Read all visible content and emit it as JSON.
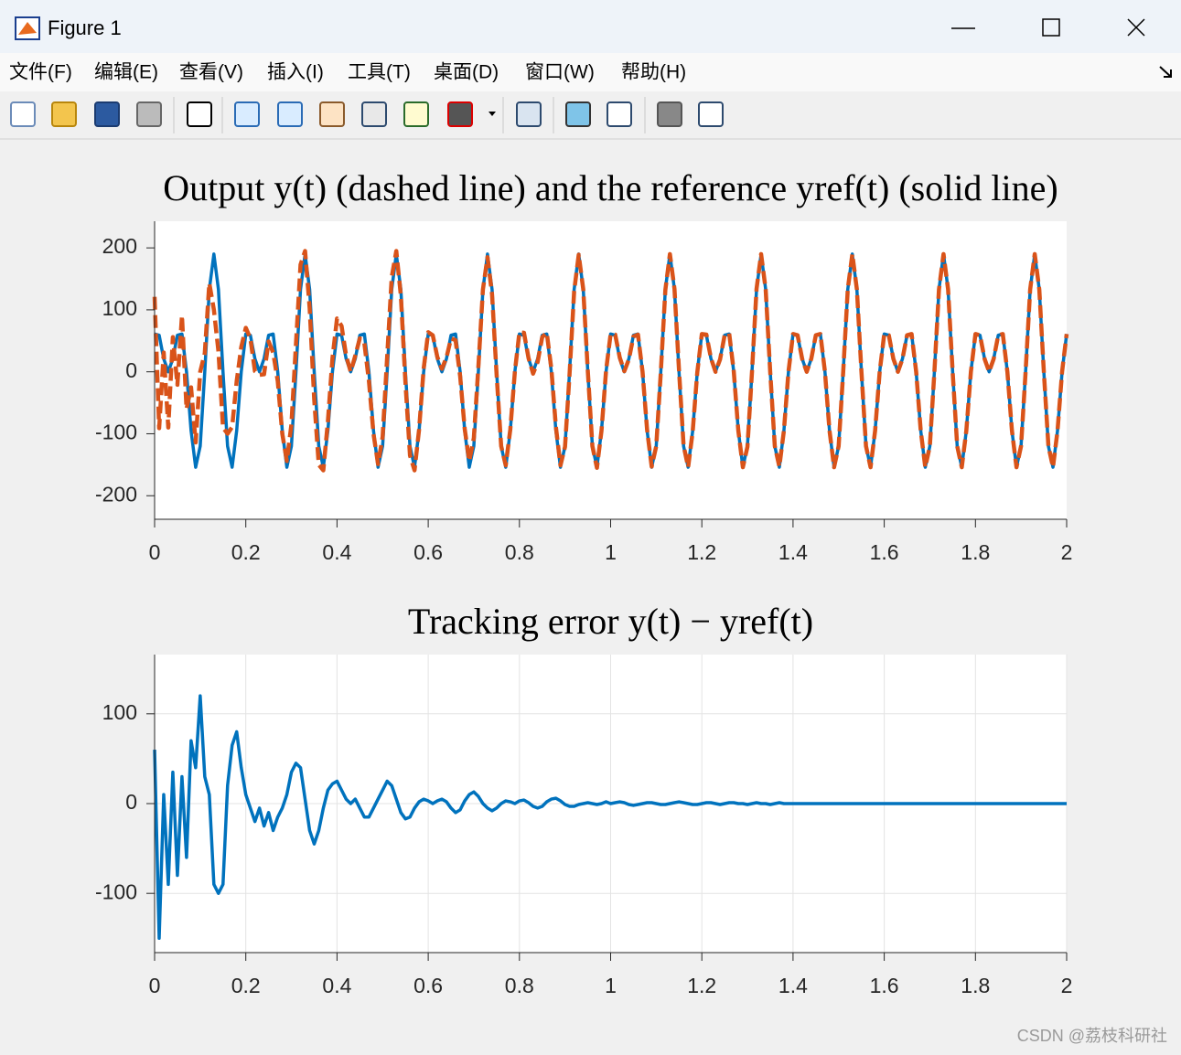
{
  "window": {
    "title": "Figure 1"
  },
  "menu": [
    "文件(F)",
    "编辑(E)",
    "查看(V)",
    "插入(I)",
    "工具(T)",
    "桌面(D)",
    "窗口(W)",
    "帮助(H)"
  ],
  "watermark": "CSDN @荔枝科研社",
  "chart_data": [
    {
      "type": "line",
      "title": "Output y(t) (dashed line) and the reference yref(t) (solid line)",
      "x": [
        0,
        0.01,
        0.02,
        0.03,
        0.04,
        0.05,
        0.06,
        0.07,
        0.08,
        0.09,
        0.1,
        0.11,
        0.12,
        0.13,
        0.14,
        0.15,
        0.16,
        0.17,
        0.18,
        0.19,
        0.2,
        0.21,
        0.22,
        0.23,
        0.24,
        0.25,
        0.26,
        0.27,
        0.28,
        0.29,
        0.3,
        0.31,
        0.32,
        0.33,
        0.34,
        0.35,
        0.36,
        0.37,
        0.38,
        0.39,
        0.4,
        0.41,
        0.42,
        0.43,
        0.44,
        0.45,
        0.46,
        0.47,
        0.48,
        0.49,
        0.5,
        0.51,
        0.52,
        0.53,
        0.54,
        0.55,
        0.56,
        0.57,
        0.58,
        0.59,
        0.6,
        0.61,
        0.62,
        0.63,
        0.64,
        0.65,
        0.66,
        0.67,
        0.68,
        0.69,
        0.7,
        0.71,
        0.72,
        0.73,
        0.74,
        0.75,
        0.76,
        0.77,
        0.78,
        0.79,
        0.8,
        0.81,
        0.82,
        0.83,
        0.84,
        0.85,
        0.86,
        0.87,
        0.88,
        0.89,
        0.9,
        0.91,
        0.92,
        0.93,
        0.94,
        0.95,
        0.96,
        0.97,
        0.98,
        0.99,
        1,
        1.01,
        1.02,
        1.03,
        1.04,
        1.05,
        1.06,
        1.07,
        1.08,
        1.09,
        1.1,
        1.11,
        1.12,
        1.13,
        1.14,
        1.15,
        1.16,
        1.17,
        1.18,
        1.19,
        1.2,
        1.21,
        1.22,
        1.23,
        1.24,
        1.25,
        1.26,
        1.27,
        1.28,
        1.29,
        1.3,
        1.31,
        1.32,
        1.33,
        1.34,
        1.35,
        1.36,
        1.37,
        1.38,
        1.39,
        1.4,
        1.41,
        1.42,
        1.43,
        1.44,
        1.45,
        1.46,
        1.47,
        1.48,
        1.49,
        1.5,
        1.51,
        1.52,
        1.53,
        1.54,
        1.55,
        1.56,
        1.57,
        1.58,
        1.59,
        1.6,
        1.61,
        1.62,
        1.63,
        1.64,
        1.65,
        1.66,
        1.67,
        1.68,
        1.69,
        1.7,
        1.71,
        1.72,
        1.73,
        1.74,
        1.75,
        1.76,
        1.77,
        1.78,
        1.79,
        1.8,
        1.81,
        1.82,
        1.83,
        1.84,
        1.85,
        1.86,
        1.87,
        1.88,
        1.89,
        1.9,
        1.91,
        1.92,
        1.93,
        1.94,
        1.95,
        1.96,
        1.97,
        1.98,
        1.99,
        2
      ],
      "series": [
        {
          "color": "#0072bd",
          "dashed": false,
          "values": [
            61,
            59,
            21,
            0,
            21,
            59,
            61,
            0,
            -95,
            -154,
            -120,
            0,
            133,
            190,
            133,
            0,
            -120,
            -154,
            -95,
            0,
            61,
            59,
            21,
            0,
            21,
            59,
            61,
            0,
            -95,
            -154,
            -120,
            0,
            133,
            190,
            133,
            0,
            -120,
            -154,
            -95,
            0,
            61,
            59,
            21,
            0,
            21,
            59,
            61,
            0,
            -95,
            -154,
            -120,
            0,
            133,
            190,
            133,
            0,
            -120,
            -154,
            -95,
            0,
            61,
            59,
            21,
            0,
            21,
            59,
            61,
            0,
            -95,
            -154,
            -120,
            0,
            133,
            190,
            133,
            0,
            -120,
            -154,
            -95,
            0,
            61,
            59,
            21,
            0,
            21,
            59,
            61,
            0,
            -95,
            -154,
            -120,
            0,
            133,
            190,
            133,
            0,
            -120,
            -154,
            -95,
            0,
            61,
            59,
            21,
            0,
            21,
            59,
            61,
            0,
            -95,
            -154,
            -120,
            0,
            133,
            190,
            133,
            0,
            -120,
            -154,
            -95,
            0,
            61,
            59,
            21,
            0,
            21,
            59,
            61,
            0,
            -95,
            -154,
            -120,
            0,
            133,
            190,
            133,
            0,
            -120,
            -154,
            -95,
            0,
            61,
            59,
            21,
            0,
            21,
            59,
            61,
            0,
            -95,
            -154,
            -120,
            0,
            133,
            190,
            133,
            0,
            -120,
            -154,
            -95,
            0,
            61,
            59,
            21,
            0,
            21,
            59,
            61,
            0,
            -95,
            -154,
            -120,
            0,
            133,
            190,
            133,
            0,
            -120,
            -154,
            -95,
            0,
            61,
            59,
            21,
            0,
            21,
            59,
            61,
            0,
            -95,
            -154,
            -120,
            0,
            133,
            190,
            133,
            0,
            -120,
            -154,
            -95,
            0,
            61
          ]
        },
        {
          "color": "#d95319",
          "dashed": true,
          "values": [
            121,
            -91,
            31,
            -90,
            56,
            -21,
            91,
            -60,
            -25,
            -114,
            0,
            30,
            143,
            100,
            33,
            -90,
            -100,
            -89,
            -15,
            40,
            71,
            54,
            1,
            -5,
            -4,
            49,
            31,
            -15,
            -100,
            -144,
            -85,
            45,
            173,
            195,
            103,
            -45,
            -150,
            -159,
            -80,
            22,
            86,
            74,
            26,
            0,
            26,
            54,
            46,
            -15,
            -100,
            -149,
            -105,
            25,
            153,
            195,
            123,
            -17,
            -135,
            -159,
            -93,
            5,
            64,
            59,
            24,
            5,
            23,
            54,
            51,
            -7,
            -92,
            -144,
            -107,
            8,
            133,
            185,
            125,
            -5,
            -120,
            -151,
            -93,
            0,
            64,
            63,
            22,
            -3,
            16,
            56,
            63,
            5,
            -89,
            -151,
            -121,
            -3,
            130,
            189,
            133,
            1,
            -120,
            -155,
            -95,
            2,
            61,
            60,
            23,
            1,
            20,
            57,
            60,
            0,
            -94,
            -153,
            -120,
            -1,
            132,
            190,
            134,
            2,
            -119,
            -154,
            -96,
            -1,
            61,
            60,
            22,
            0,
            20,
            59,
            62,
            1,
            -95,
            -154,
            -121,
            0,
            134,
            190,
            133,
            -1,
            -120,
            -153,
            -95,
            0,
            61,
            59,
            21,
            0,
            21,
            59,
            61,
            0,
            -95,
            -154,
            -120,
            0,
            133,
            190,
            133,
            0,
            -120,
            -154,
            -95,
            0,
            61,
            59,
            21,
            0,
            21,
            59,
            61,
            0,
            -95,
            -154,
            -120,
            0,
            133,
            190,
            133,
            0,
            -120,
            -154,
            -95,
            0,
            61,
            59,
            21,
            0,
            21,
            59,
            61,
            0,
            -95,
            -154,
            -120,
            0,
            133,
            190,
            133,
            0,
            -120,
            -154,
            -95,
            0,
            61
          ]
        }
      ],
      "xlim": [
        0,
        2
      ],
      "xticks": [
        0,
        0.2,
        0.4,
        0.6,
        0.8,
        1,
        1.2,
        1.4,
        1.6,
        1.8,
        2
      ],
      "ylim": [
        -238,
        243
      ],
      "yticks": [
        -200,
        -100,
        0,
        100,
        200
      ],
      "grid": false
    },
    {
      "type": "line",
      "title": "Tracking error y(t) − yref(t)",
      "x": [
        0,
        0.01,
        0.02,
        0.03,
        0.04,
        0.05,
        0.06,
        0.07,
        0.08,
        0.09,
        0.1,
        0.11,
        0.12,
        0.13,
        0.14,
        0.15,
        0.16,
        0.17,
        0.18,
        0.19,
        0.2,
        0.21,
        0.22,
        0.23,
        0.24,
        0.25,
        0.26,
        0.27,
        0.28,
        0.29,
        0.3,
        0.31,
        0.32,
        0.33,
        0.34,
        0.35,
        0.36,
        0.37,
        0.38,
        0.39,
        0.4,
        0.41,
        0.42,
        0.43,
        0.44,
        0.45,
        0.46,
        0.47,
        0.48,
        0.49,
        0.5,
        0.51,
        0.52,
        0.53,
        0.54,
        0.55,
        0.56,
        0.57,
        0.58,
        0.59,
        0.6,
        0.61,
        0.62,
        0.63,
        0.64,
        0.65,
        0.66,
        0.67,
        0.68,
        0.69,
        0.7,
        0.71,
        0.72,
        0.73,
        0.74,
        0.75,
        0.76,
        0.77,
        0.78,
        0.79,
        0.8,
        0.81,
        0.82,
        0.83,
        0.84,
        0.85,
        0.86,
        0.87,
        0.88,
        0.89,
        0.9,
        0.91,
        0.92,
        0.93,
        0.94,
        0.95,
        0.96,
        0.97,
        0.98,
        0.99,
        1,
        1.01,
        1.02,
        1.03,
        1.04,
        1.05,
        1.06,
        1.07,
        1.08,
        1.09,
        1.1,
        1.11,
        1.12,
        1.13,
        1.14,
        1.15,
        1.16,
        1.17,
        1.18,
        1.19,
        1.2,
        1.21,
        1.22,
        1.23,
        1.24,
        1.25,
        1.26,
        1.27,
        1.28,
        1.29,
        1.3,
        1.31,
        1.32,
        1.33,
        1.34,
        1.35,
        1.36,
        1.37,
        1.38,
        1.39,
        1.4,
        1.41,
        1.42,
        1.43,
        1.44,
        1.45,
        1.46,
        1.47,
        1.48,
        1.49,
        1.5,
        1.51,
        1.52,
        1.53,
        1.54,
        1.55,
        1.56,
        1.57,
        1.58,
        1.59,
        1.6,
        1.61,
        1.62,
        1.63,
        1.64,
        1.65,
        1.66,
        1.67,
        1.68,
        1.69,
        1.7,
        1.71,
        1.72,
        1.73,
        1.74,
        1.75,
        1.76,
        1.77,
        1.78,
        1.79,
        1.8,
        1.81,
        1.82,
        1.83,
        1.84,
        1.85,
        1.86,
        1.87,
        1.88,
        1.89,
        1.9,
        1.91,
        1.92,
        1.93,
        1.94,
        1.95,
        1.96,
        1.97,
        1.98,
        1.99,
        2
      ],
      "series": [
        {
          "color": "#0072bd",
          "dashed": false,
          "values": [
            60,
            -150,
            10,
            -90,
            35,
            -80,
            30,
            -60,
            70,
            40,
            120,
            30,
            10,
            -90,
            -100,
            -90,
            20,
            65,
            80,
            40,
            10,
            -5,
            -20,
            -5,
            -25,
            -10,
            -30,
            -15,
            -5,
            10,
            35,
            45,
            40,
            5,
            -30,
            -45,
            -30,
            -5,
            15,
            22,
            25,
            15,
            5,
            0,
            5,
            -5,
            -15,
            -15,
            -5,
            5,
            15,
            25,
            20,
            5,
            -10,
            -17,
            -15,
            -5,
            2,
            5,
            3,
            0,
            3,
            5,
            2,
            -5,
            -10,
            -7,
            3,
            10,
            13,
            8,
            0,
            -5,
            -8,
            -5,
            0,
            3,
            2,
            0,
            3,
            4,
            1,
            -3,
            -5,
            -3,
            2,
            5,
            6,
            3,
            -1,
            -3,
            -3,
            -1,
            0,
            1,
            0,
            -1,
            0,
            2,
            0,
            1,
            2,
            1,
            -1,
            -2,
            -1,
            0,
            1,
            1,
            0,
            -1,
            -1,
            0,
            1,
            2,
            1,
            0,
            -1,
            -1,
            0,
            1,
            1,
            0,
            -1,
            0,
            1,
            1,
            0,
            0,
            -1,
            0,
            1,
            0,
            0,
            -1,
            0,
            1,
            0,
            0,
            0,
            0,
            0,
            0,
            0,
            0,
            0,
            0,
            0,
            0,
            0,
            0,
            0,
            0,
            0,
            0,
            0,
            0,
            0,
            0,
            0,
            0,
            0,
            0,
            0,
            0,
            0,
            0,
            0,
            0,
            0,
            0,
            0,
            0,
            0,
            0,
            0,
            0,
            0,
            0,
            0,
            0,
            0,
            0,
            0,
            0,
            0,
            0,
            0,
            0,
            0,
            0,
            0,
            0,
            0,
            0,
            0,
            0,
            0,
            0,
            0
          ]
        }
      ],
      "xlim": [
        0,
        2
      ],
      "xticks": [
        0,
        0.2,
        0.4,
        0.6,
        0.8,
        1,
        1.2,
        1.4,
        1.6,
        1.8,
        2
      ],
      "ylim": [
        -166,
        166
      ],
      "yticks": [
        -100,
        0,
        100
      ],
      "grid": true
    }
  ]
}
